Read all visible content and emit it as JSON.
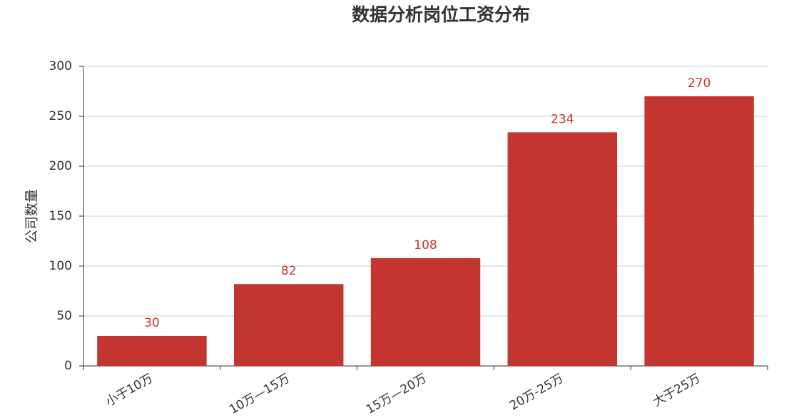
{
  "chart_data": {
    "type": "bar",
    "title": "数据分析岗位工资分布",
    "y_label": "公司数量",
    "categories": [
      "小于10万",
      "10万—15万",
      "15万—20万",
      "20万-25万",
      "大于25万"
    ],
    "values": [
      30,
      82,
      108,
      234,
      270
    ],
    "color": "#c23531",
    "ylim": [
      0,
      300
    ],
    "yticks": [
      0,
      50,
      100,
      150,
      200,
      250,
      300
    ],
    "grid": true,
    "data_labels": true
  }
}
